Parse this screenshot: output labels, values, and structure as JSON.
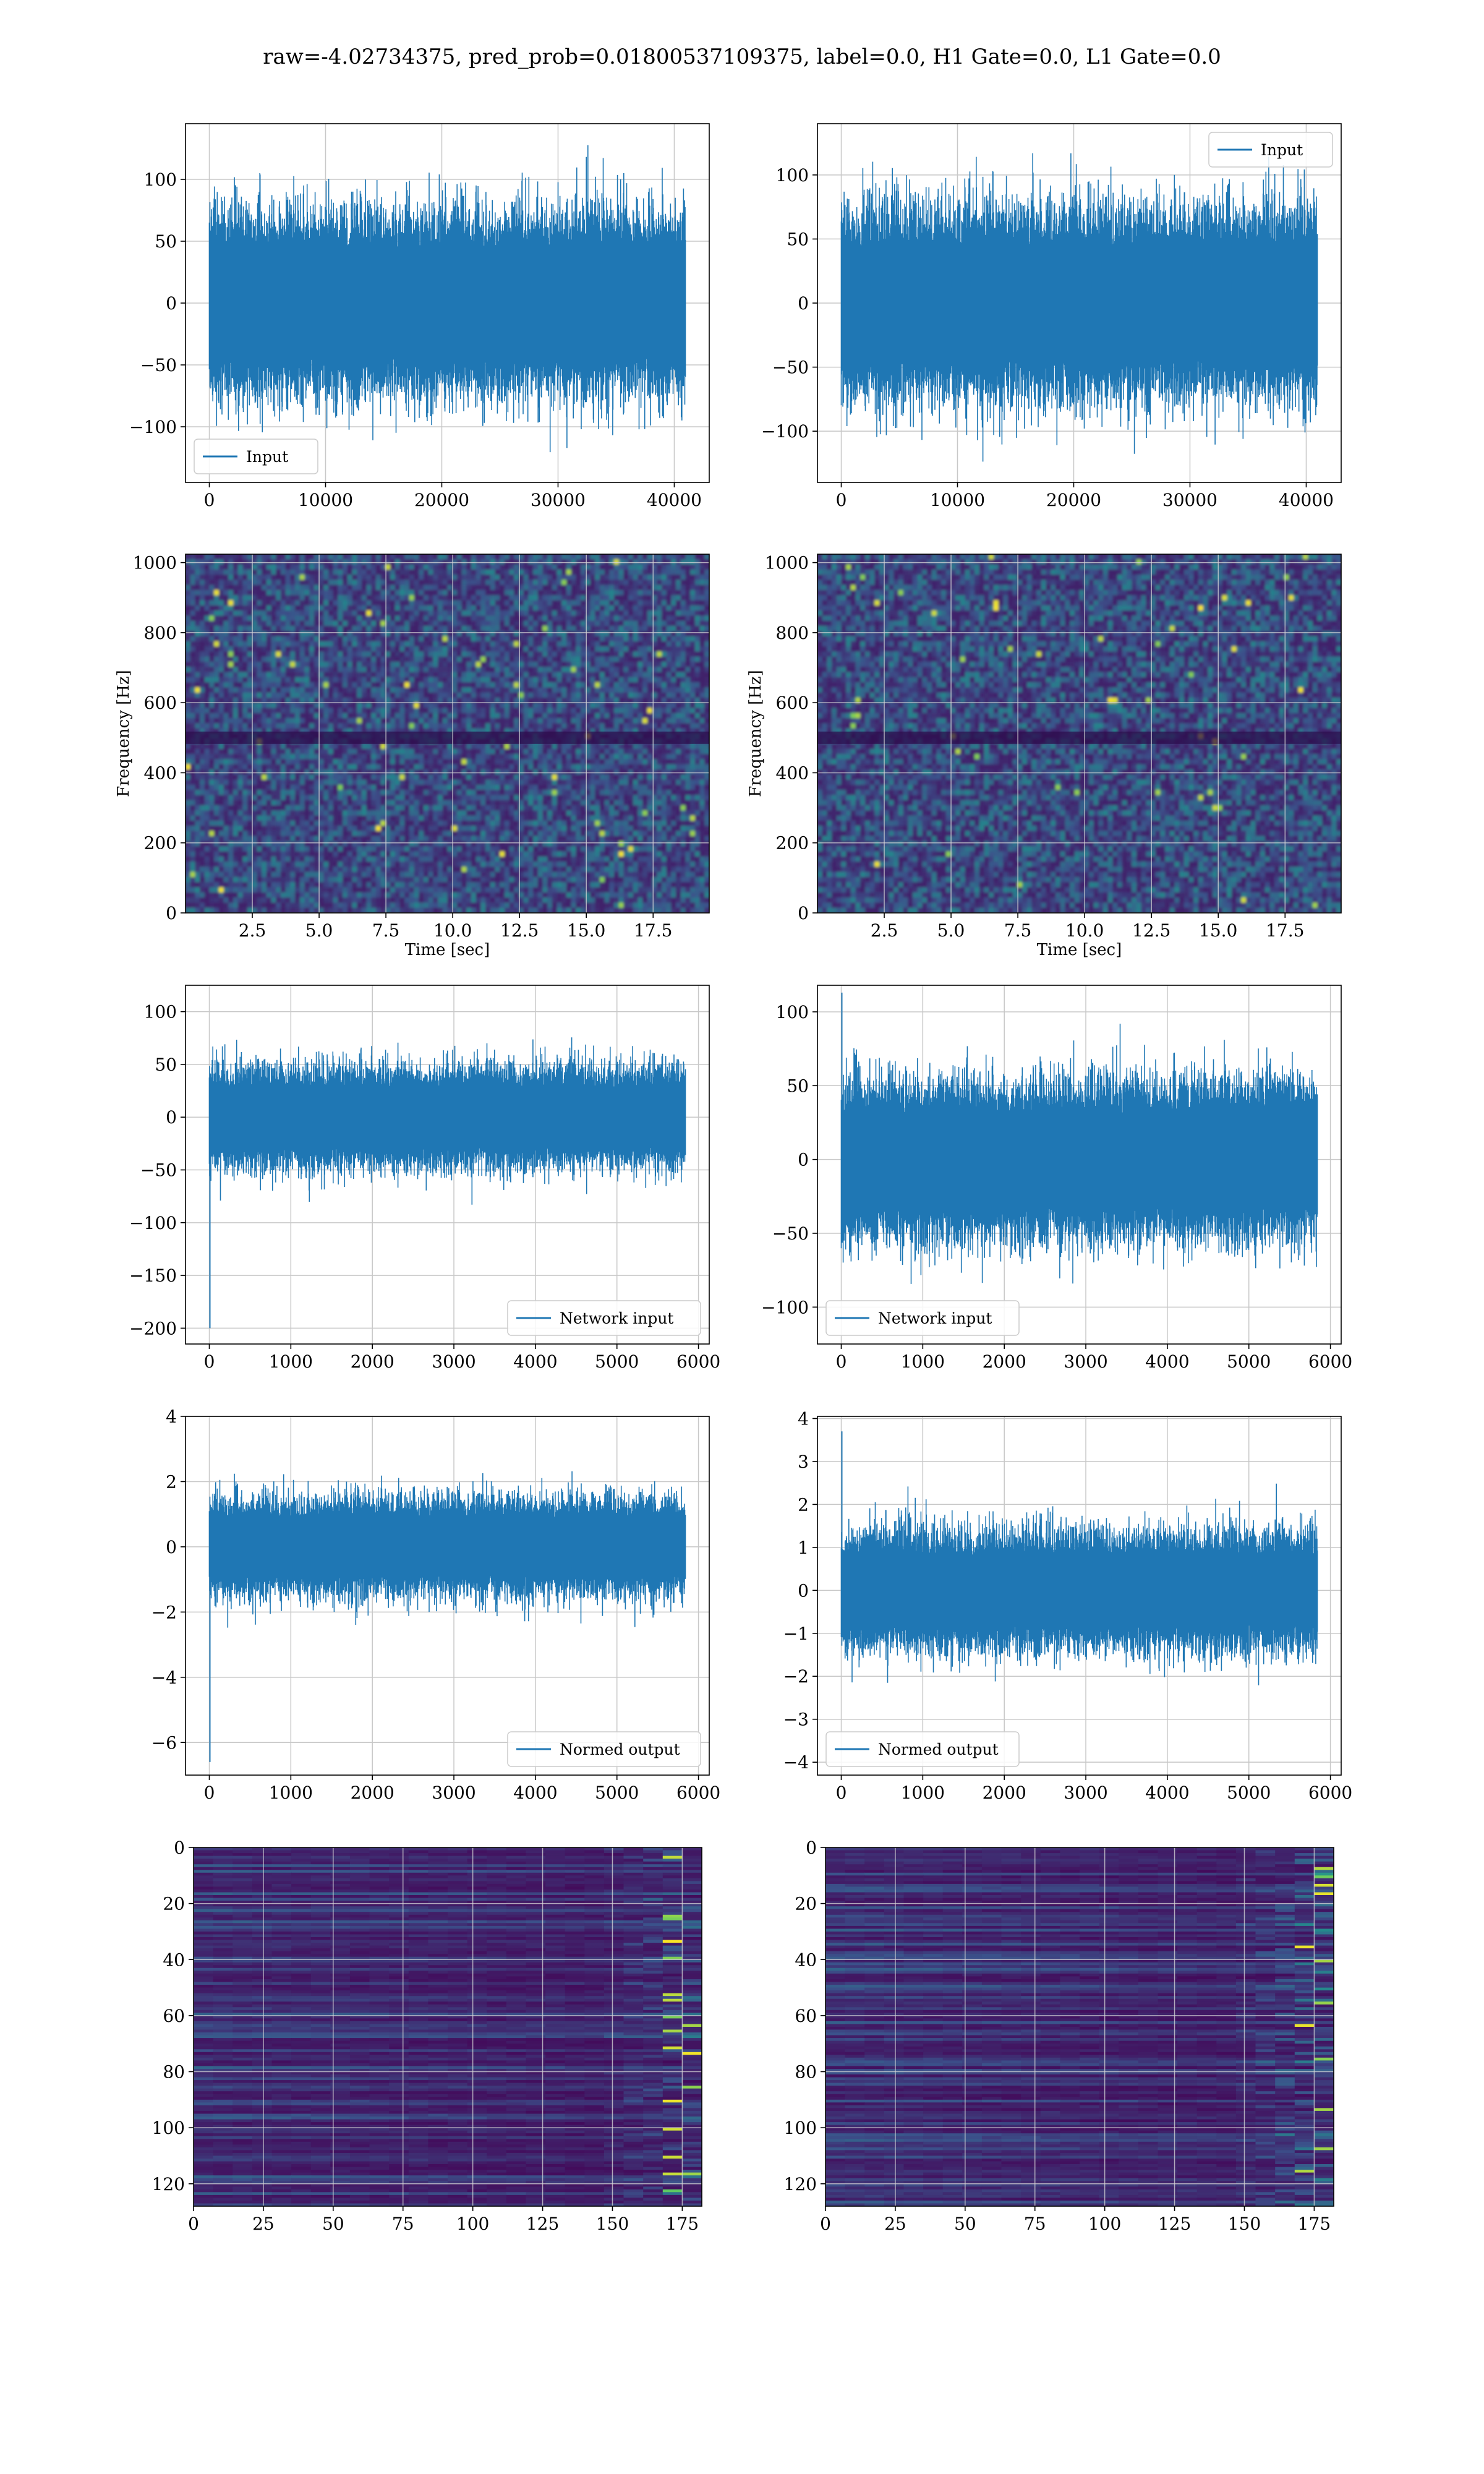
{
  "suptitle": "raw=-4.02734375, pred_prob=0.01800537109375, label=0.0, H1 Gate=0.0, L1 Gate=0.0",
  "colors": {
    "line": "#1f77b4",
    "grid": "#c8c8c8",
    "viridis_dark": "#3b0f5c",
    "viridis_mid": "#2a6f8e",
    "viridis_green": "#3fbc73",
    "viridis_yellow": "#fde725"
  },
  "chart_data": [
    {
      "id": "h1-input",
      "type": "line",
      "legend": "Input",
      "legend_loc": "lower left",
      "x_range": [
        0,
        40960
      ],
      "xlim": [
        -2048,
        43008
      ],
      "ylim": [
        -145,
        145
      ],
      "xticks": [
        0,
        10000,
        20000,
        30000,
        40000
      ],
      "yticks": [
        -100,
        -50,
        0,
        50,
        100
      ],
      "amp_core": 70,
      "amp_peak": 128,
      "x_end": 40960,
      "grid": true
    },
    {
      "id": "l1-input",
      "type": "line",
      "legend": "Input",
      "legend_loc": "upper right",
      "x_range": [
        0,
        40960
      ],
      "xlim": [
        -2048,
        43008
      ],
      "ylim": [
        -140,
        140
      ],
      "xticks": [
        0,
        10000,
        20000,
        30000,
        40000
      ],
      "yticks": [
        -100,
        -50,
        0,
        50,
        100
      ],
      "amp_core": 70,
      "amp_peak": 125,
      "x_end": 40960,
      "grid": true
    },
    {
      "id": "h1-spectrogram",
      "type": "heatmap",
      "xlabel": "Time [sec]",
      "ylabel": "Frequency [Hz]",
      "xlim": [
        0,
        19.6
      ],
      "ylim": [
        0,
        1024
      ],
      "xticks": [
        2.5,
        5.0,
        7.5,
        10.0,
        12.5,
        15.0,
        17.5
      ],
      "yticks": [
        0,
        200,
        400,
        600,
        800,
        1000
      ],
      "band_hz": 500,
      "colormap": "viridis",
      "grid": true
    },
    {
      "id": "l1-spectrogram",
      "type": "heatmap",
      "xlabel": "Time [sec]",
      "ylabel": "Frequency [Hz]",
      "xlim": [
        0,
        19.6
      ],
      "ylim": [
        0,
        1024
      ],
      "xticks": [
        2.5,
        5.0,
        7.5,
        10.0,
        12.5,
        15.0,
        17.5
      ],
      "yticks": [
        0,
        200,
        400,
        600,
        800,
        1000
      ],
      "band_hz": 500,
      "colormap": "viridis",
      "grid": true
    },
    {
      "id": "h1-network-input",
      "type": "line",
      "legend": "Network input",
      "legend_loc": "lower right",
      "x_range": [
        0,
        5840
      ],
      "xlim": [
        -292,
        6132
      ],
      "ylim": [
        -215,
        125
      ],
      "xticks": [
        0,
        1000,
        2000,
        3000,
        4000,
        5000,
        6000
      ],
      "yticks": [
        -200,
        -150,
        -100,
        -50,
        0,
        50,
        100
      ],
      "amp_core": 45,
      "amp_peak": 108,
      "x_end": 5840,
      "spike": -200,
      "grid": true
    },
    {
      "id": "l1-network-input",
      "type": "line",
      "legend": "Network input",
      "legend_loc": "lower left",
      "x_range": [
        0,
        5840
      ],
      "xlim": [
        -292,
        6132
      ],
      "ylim": [
        -125,
        118
      ],
      "xticks": [
        0,
        1000,
        2000,
        3000,
        4000,
        5000,
        6000
      ],
      "yticks": [
        -100,
        -50,
        0,
        50,
        100
      ],
      "amp_core": 50,
      "amp_peak": 112,
      "x_end": 5840,
      "spike": 113,
      "grid": true
    },
    {
      "id": "h1-normed-output",
      "type": "line",
      "legend": "Normed output",
      "legend_loc": "lower right",
      "x_range": [
        0,
        5840
      ],
      "xlim": [
        -292,
        6132
      ],
      "ylim": [
        -7.0,
        4.0
      ],
      "xticks": [
        0,
        1000,
        2000,
        3000,
        4000,
        5000,
        6000
      ],
      "yticks": [
        -6,
        -4,
        -2,
        0,
        2,
        4
      ],
      "amp_core": 1.4,
      "amp_peak": 3.5,
      "x_end": 5840,
      "spike": -6.6,
      "grid": true
    },
    {
      "id": "l1-normed-output",
      "type": "line",
      "legend": "Normed output",
      "legend_loc": "lower left",
      "x_range": [
        0,
        5840
      ],
      "xlim": [
        -292,
        6132
      ],
      "ylim": [
        -4.3,
        4.05
      ],
      "xticks": [
        0,
        1000,
        2000,
        3000,
        4000,
        5000,
        6000
      ],
      "yticks": [
        -4,
        -3,
        -2,
        -1,
        0,
        1,
        2,
        3,
        4
      ],
      "amp_core": 1.3,
      "amp_peak": 3.8,
      "x_end": 5840,
      "spike": 3.7,
      "grid": true
    },
    {
      "id": "h1-feature-map",
      "type": "heatmap",
      "xlim": [
        0,
        182
      ],
      "ylim": [
        128,
        0
      ],
      "xticks": [
        0,
        25,
        50,
        75,
        100,
        125,
        150,
        175
      ],
      "yticks": [
        0,
        20,
        40,
        60,
        80,
        100,
        120
      ],
      "colormap": "viridis",
      "grid": true
    },
    {
      "id": "l1-feature-map",
      "type": "heatmap",
      "xlim": [
        0,
        182
      ],
      "ylim": [
        128,
        0
      ],
      "xticks": [
        0,
        25,
        50,
        75,
        100,
        125,
        150,
        175
      ],
      "yticks": [
        0,
        20,
        40,
        60,
        80,
        100,
        120
      ],
      "colormap": "viridis",
      "grid": true
    }
  ]
}
